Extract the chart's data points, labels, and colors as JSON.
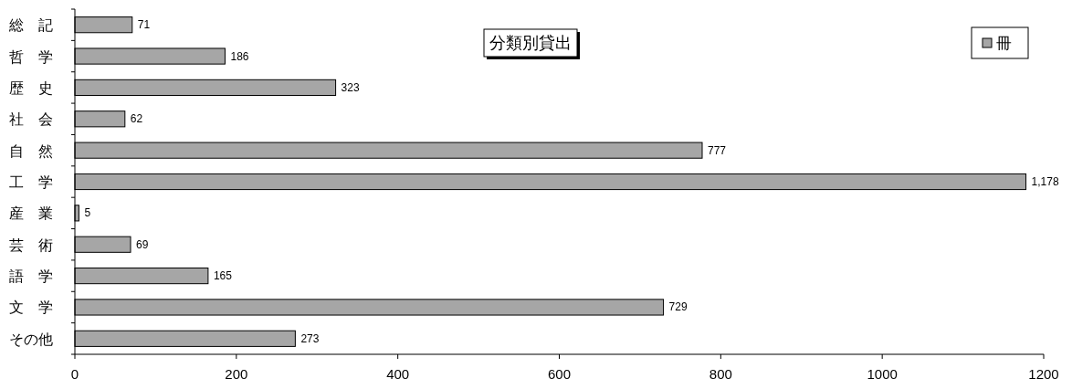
{
  "chart_data": {
    "type": "bar",
    "orientation": "horizontal",
    "title": "分類別貸出",
    "categories": [
      "総　記",
      "哲　学",
      "歴　史",
      "社　会",
      "自　然",
      "工　学",
      "産　業",
      "芸　術",
      "語　学",
      "文　学",
      "その他"
    ],
    "series": [
      {
        "name": "冊",
        "color": "#a6a6a6",
        "values": [
          71,
          186,
          323,
          62,
          777,
          1178,
          5,
          69,
          165,
          729,
          273
        ],
        "value_labels": [
          "71",
          "186",
          "323",
          "62",
          "777",
          "1,178",
          "5",
          "69",
          "165",
          "729",
          "273"
        ]
      }
    ],
    "xlim": [
      0,
      1200
    ],
    "xticks": [
      0,
      200,
      400,
      600,
      800,
      1000,
      1200
    ],
    "grid": false,
    "legend": "top right"
  }
}
